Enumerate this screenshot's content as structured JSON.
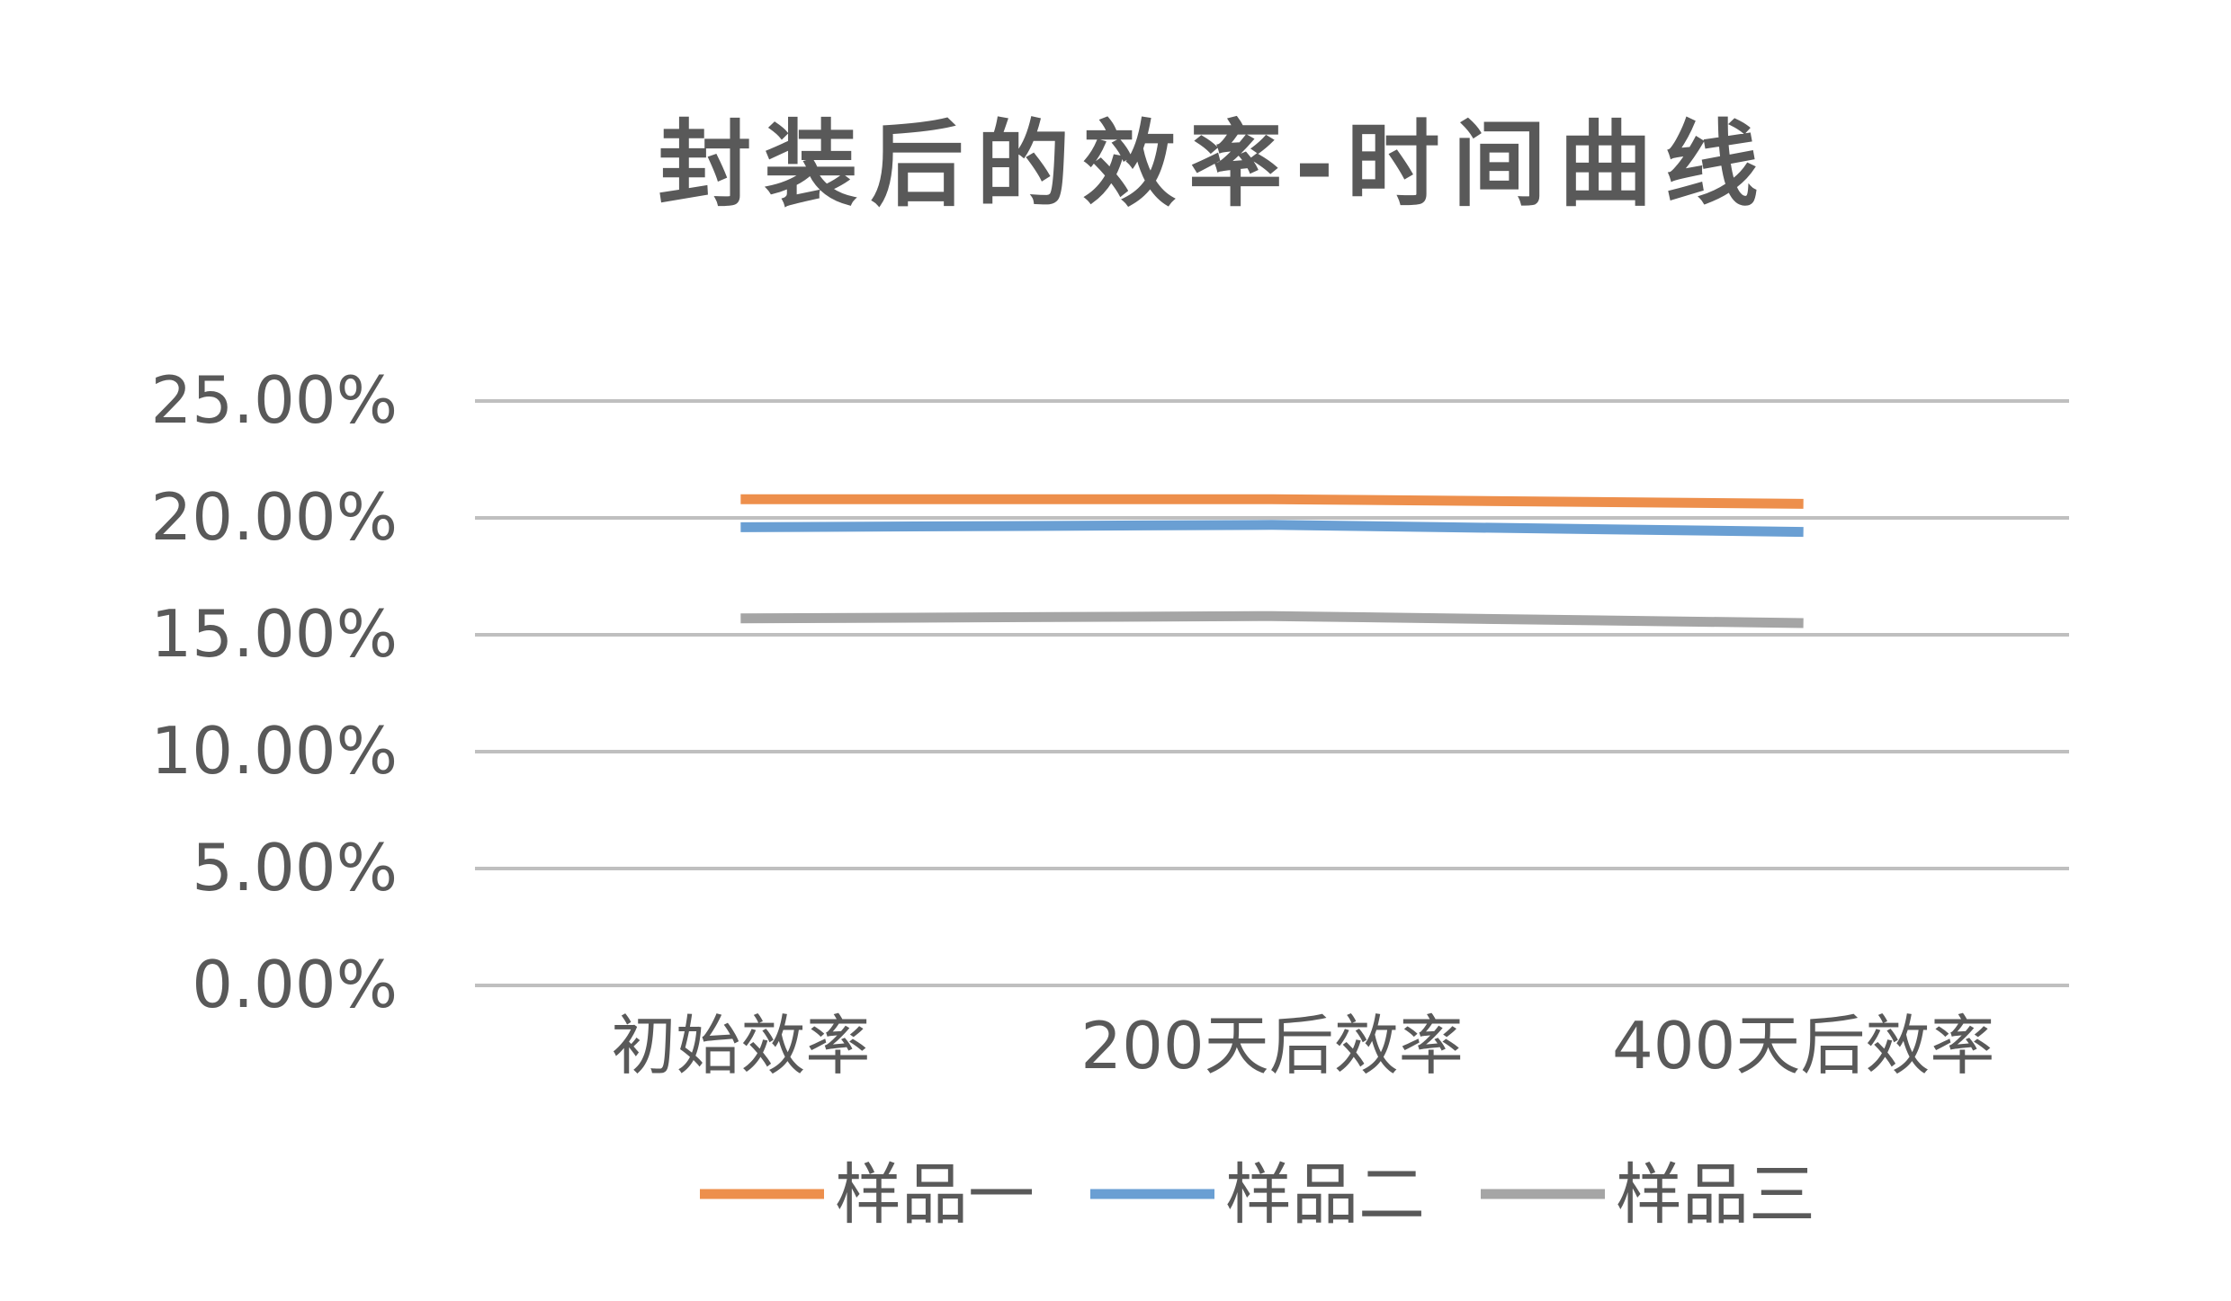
{
  "chart_data": {
    "type": "line",
    "title": "封装后的效率-时间曲线",
    "xlabel": "",
    "ylabel": "",
    "categories": [
      "初始效率",
      "200天后效率",
      "400天后效率"
    ],
    "y_tick_labels": [
      "0.00%",
      "5.00%",
      "10.00%",
      "15.00%",
      "20.00%",
      "25.00%"
    ],
    "ylim": [
      0,
      25
    ],
    "grid": true,
    "legend_position": "bottom",
    "series": [
      {
        "name": "样品一",
        "color": "#ED8F4C",
        "values": [
          20.8,
          20.8,
          20.6
        ]
      },
      {
        "name": "样品二",
        "color": "#6A9FD3",
        "values": [
          19.6,
          19.7,
          19.4
        ]
      },
      {
        "name": "样品三",
        "color": "#A5A5A5",
        "values": [
          15.7,
          15.8,
          15.5
        ]
      }
    ]
  }
}
